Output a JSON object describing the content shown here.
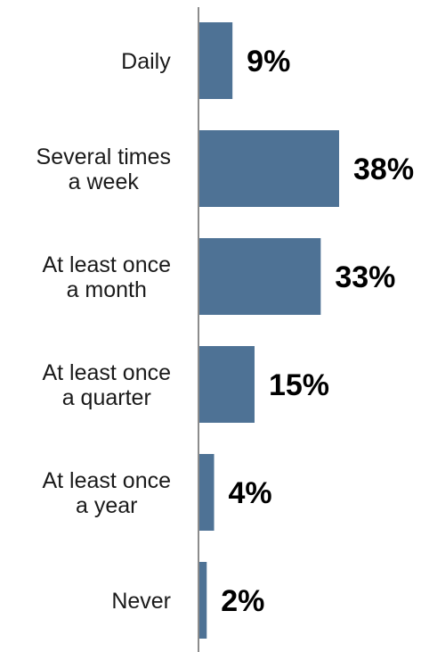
{
  "chart_data": {
    "type": "bar",
    "orientation": "horizontal",
    "categories": [
      [
        "Daily"
      ],
      [
        "Several times",
        "a week"
      ],
      [
        "At least once",
        "a month"
      ],
      [
        "At least once",
        "a quarter"
      ],
      [
        "At least once",
        "a year"
      ],
      [
        "Never"
      ]
    ],
    "values": [
      9,
      38,
      33,
      15,
      4,
      2
    ],
    "value_labels": [
      "9%",
      "38%",
      "33%",
      "15%",
      "4%",
      "2%"
    ],
    "unit": "%",
    "title": "",
    "xlabel": "",
    "ylabel": "",
    "xlim": [
      0,
      38
    ],
    "grid": false,
    "legend": "none",
    "colors": {
      "bar": "#4e7295",
      "axis": "#8c8c8c",
      "category_text": "#1a1a1a",
      "value_text": "#000000"
    }
  }
}
